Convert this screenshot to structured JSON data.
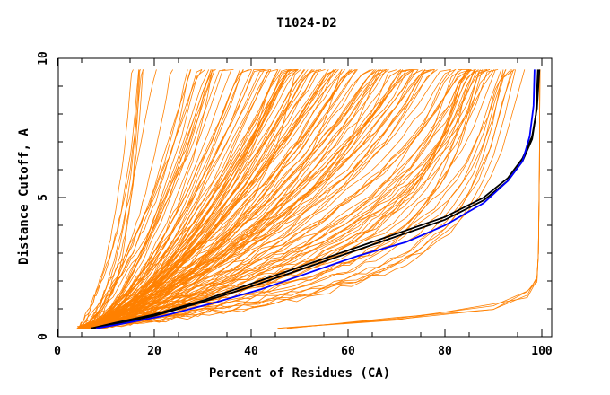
{
  "chart_data": {
    "type": "line",
    "title": "T1024-D2",
    "xlabel": "Percent of Residues (CA)",
    "ylabel": "Distance Cutoff, A",
    "xlim": [
      0,
      100
    ],
    "ylim": [
      0,
      10
    ],
    "x_ticks": [
      "0",
      "20",
      "40",
      "60",
      "80",
      "100"
    ],
    "y_ticks": [
      "0",
      "5",
      "10"
    ],
    "grid": false,
    "colors": {
      "bundle": "#ff8000",
      "best": "#000000",
      "highlight": "#0000ff",
      "frame": "#000000"
    },
    "series": [
      {
        "color": "#000000",
        "points": [
          [
            7,
            0.3
          ],
          [
            12,
            0.5
          ],
          [
            20,
            0.8
          ],
          [
            30,
            1.3
          ],
          [
            40,
            1.9
          ],
          [
            50,
            2.5
          ],
          [
            60,
            3.1
          ],
          [
            70,
            3.7
          ],
          [
            80,
            4.3
          ],
          [
            88,
            5.0
          ],
          [
            93,
            5.7
          ],
          [
            96,
            6.4
          ],
          [
            98,
            7.2
          ],
          [
            99,
            8.2
          ],
          [
            99.5,
            9.6
          ]
        ]
      },
      {
        "color": "#000000",
        "points": [
          [
            7,
            0.3
          ],
          [
            12,
            0.45
          ],
          [
            20,
            0.75
          ],
          [
            30,
            1.25
          ],
          [
            40,
            1.8
          ],
          [
            50,
            2.4
          ],
          [
            60,
            3.0
          ],
          [
            70,
            3.6
          ],
          [
            80,
            4.2
          ],
          [
            88,
            4.9
          ],
          [
            93,
            5.6
          ],
          [
            96,
            6.3
          ],
          [
            98,
            7.1
          ],
          [
            98.8,
            8.0
          ],
          [
            99.2,
            9.6
          ]
        ]
      },
      {
        "color": "#0000ff",
        "points": [
          [
            8,
            0.3
          ],
          [
            13,
            0.45
          ],
          [
            22,
            0.75
          ],
          [
            32,
            1.2
          ],
          [
            42,
            1.7
          ],
          [
            52,
            2.3
          ],
          [
            62,
            2.9
          ],
          [
            72,
            3.4
          ],
          [
            80,
            4.0
          ],
          [
            88,
            4.8
          ],
          [
            93,
            5.6
          ],
          [
            96,
            6.3
          ],
          [
            97.5,
            7.2
          ],
          [
            98.3,
            8.3
          ],
          [
            98.5,
            9.6
          ]
        ]
      }
    ]
  }
}
